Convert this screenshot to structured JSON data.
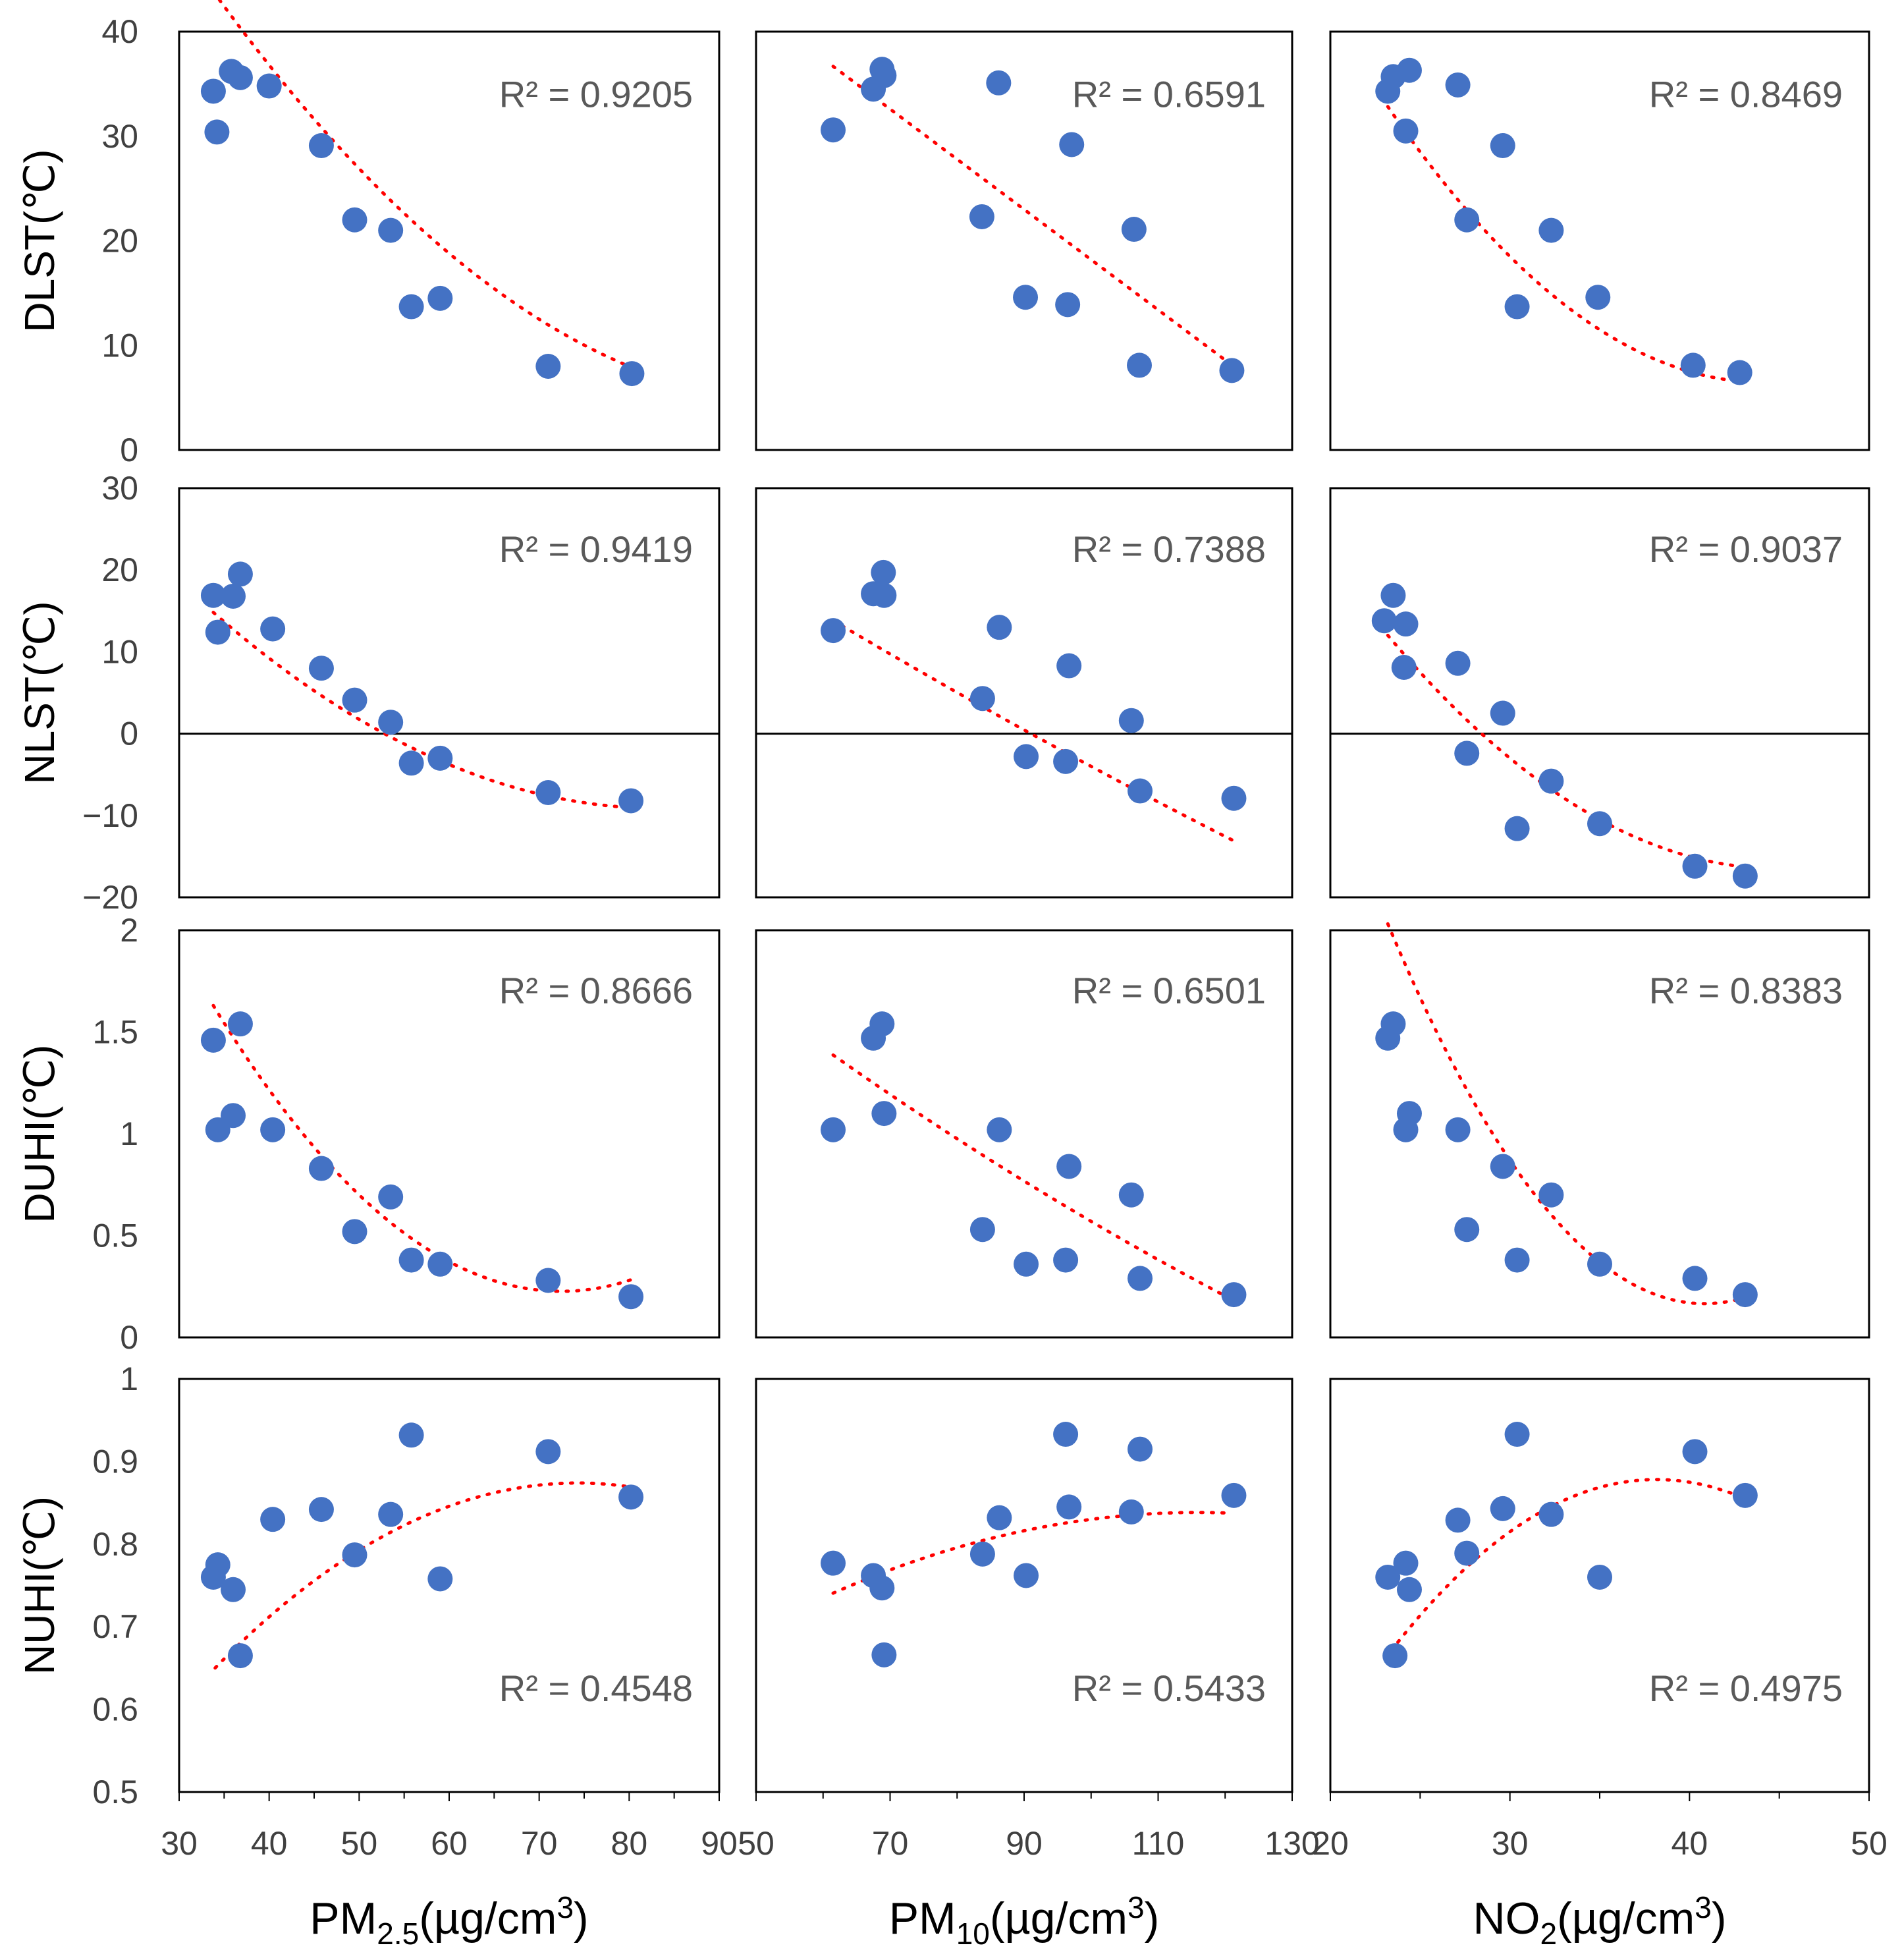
{
  "chart_data": {
    "type": "scatter",
    "layout": "4x3 grid of scatter plots with polynomial trendlines",
    "colors": {
      "points": "#4472C4",
      "trendline": "#FF0000",
      "frame": "#000000",
      "text": "#595959"
    },
    "x_axes": [
      {
        "label": "PM2.5 (µg/cm3)",
        "label_main": "PM",
        "label_sub": "2.5",
        "label_tail": "(µg/cm",
        "label_sup": "3",
        "label_end": ")",
        "range": [
          30,
          90
        ],
        "ticks": [
          "30",
          "40",
          "50",
          "60",
          "70",
          "80",
          "90"
        ]
      },
      {
        "label": "PM10(µg/cm3)",
        "label_main": "PM",
        "label_sub": "10",
        "label_tail": "(µg/cm",
        "label_sup": "3",
        "label_end": ")",
        "range": [
          50,
          130
        ],
        "ticks": [
          "50",
          "70",
          "90",
          "110",
          "130"
        ]
      },
      {
        "label": "NO2(µg/cm3)",
        "label_main": "NO",
        "label_sub": "2",
        "label_tail": "(µg/cm",
        "label_sup": "3",
        "label_end": ")",
        "range": [
          20,
          50
        ],
        "ticks": [
          "20",
          "30",
          "40",
          "50"
        ]
      }
    ],
    "rows": [
      {
        "ylabel": "DLST(℃)",
        "range": [
          0,
          40
        ],
        "ticks": [
          "0",
          "10",
          "20",
          "30",
          "40"
        ],
        "panels": [
          {
            "r2_label": "R² = 0.9205",
            "r2": 0.9205,
            "r2_pos": "top-right",
            "x": [
              33.8,
              34.2,
              35.8,
              36.8,
              40,
              45.8,
              49.5,
              53.5,
              55.8,
              59,
              71,
              80.3
            ],
            "y": [
              34.3,
              30.4,
              36.2,
              35.6,
              34.8,
              29.1,
              22,
              21,
              13.7,
              14.5,
              8,
              7.3
            ],
            "fit_x": [
              33.8,
              80.3
            ],
            "fit": [
              0.009,
              -1.8,
              94.4
            ]
          },
          {
            "r2_label": "R² = 0.6591",
            "r2": 0.6591,
            "r2_pos": "top-right",
            "x": [
              61.5,
              67.5,
              68.8,
              69.1,
              86.2,
              83.7,
              90.2,
              96.5,
              97.1,
              106.4,
              107.2,
              121
            ],
            "y": [
              30.6,
              34.5,
              36.4,
              35.8,
              35.1,
              22.3,
              14.6,
              13.9,
              29.2,
              21.1,
              8.1,
              7.6
            ],
            "fit_x": [
              61.5,
              121
            ],
            "fit": [
              0,
              -0.48,
              66.2
            ]
          },
          {
            "r2_label": "R² = 0.8469",
            "r2": 0.8469,
            "r2_pos": "top-right",
            "x": [
              23.2,
              23.5,
              24.2,
              24.4,
              27.1,
              27.6,
              29.6,
              30.4,
              32.3,
              34.9,
              40.2,
              42.8
            ],
            "y": [
              34.3,
              35.7,
              30.5,
              36.3,
              34.9,
              22,
              29.1,
              13.7,
              21,
              14.6,
              8.1,
              7.4
            ],
            "fit_x": [
              23.2,
              42.8
            ],
            "fit": [
              0.06,
              -5.3,
              123.5
            ]
          }
        ]
      },
      {
        "ylabel": "NLST(℃)",
        "range": [
          -20,
          30
        ],
        "ticks": [
          "−20",
          "−10",
          "0",
          "10",
          "20",
          "30"
        ],
        "zero_line": 0,
        "panels": [
          {
            "r2_label": "R² = 0.9419",
            "r2": 0.9419,
            "r2_pos": "top-right",
            "x": [
              33.8,
              34.3,
              36,
              36.8,
              40.4,
              45.8,
              49.5,
              53.5,
              55.8,
              59,
              71,
              80.2
            ],
            "y": [
              16.9,
              12.4,
              16.8,
              19.5,
              12.8,
              8,
              4.1,
              1.4,
              -3.6,
              -3,
              -7.2,
              -8.2
            ],
            "fit_x": [
              33.8,
              80.3
            ],
            "fit": [
              0.0097,
              -1.62,
              58.5
            ]
          },
          {
            "r2_label": "R² = 0.7388",
            "r2": 0.7388,
            "r2_pos": "top-right",
            "x": [
              61.5,
              67.5,
              69,
              69.1,
              86.3,
              83.8,
              90.3,
              96.2,
              96.7,
              106,
              107.3,
              121.3
            ],
            "y": [
              12.6,
              17.1,
              19.7,
              16.9,
              13,
              4.3,
              -2.8,
              -3.4,
              8.3,
              1.6,
              -7,
              -7.9
            ],
            "fit_x": [
              61.5,
              121
            ],
            "fit": [
              0.0006,
              -0.56,
              46
            ]
          },
          {
            "r2_label": "R² = 0.9037",
            "r2": 0.9037,
            "r2_pos": "top-right",
            "x": [
              23,
              23.5,
              24.2,
              24.1,
              27.1,
              27.6,
              29.6,
              30.4,
              32.3,
              35,
              40.3,
              43.1
            ],
            "y": [
              13.8,
              16.9,
              13.4,
              8.1,
              8.6,
              -2.4,
              2.5,
              -11.6,
              -5.8,
              -11,
              -16.2,
              -17.4
            ],
            "fit_x": [
              23.2,
              42.8
            ],
            "fit": [
              0.06,
              -5.4,
              105
            ]
          }
        ]
      },
      {
        "ylabel": "DUHI(℃)",
        "range": [
          0,
          2
        ],
        "ticks": [
          "0",
          "0.5",
          "1",
          "1.5",
          "2"
        ],
        "panels": [
          {
            "r2_label": "R² = 0.8666",
            "r2": 0.8666,
            "r2_pos": "top-right",
            "x": [
              33.8,
              34.3,
              36,
              36.8,
              40.4,
              45.8,
              49.5,
              53.5,
              55.8,
              59,
              71,
              80.2
            ],
            "y": [
              1.46,
              1.02,
              1.09,
              1.54,
              1.02,
              0.83,
              0.52,
              0.69,
              0.38,
              0.36,
              0.28,
              0.2
            ],
            "fit_x": [
              33.8,
              80.3
            ],
            "fit": [
              0.00094,
              -0.1362,
              5.16
            ]
          },
          {
            "r2_label": "R² = 0.6501",
            "r2": 0.6501,
            "r2_pos": "top-right",
            "x": [
              61.5,
              67.5,
              68.8,
              69.1,
              86.3,
              83.8,
              90.3,
              96.2,
              96.7,
              106,
              107.3,
              121.3
            ],
            "y": [
              1.02,
              1.47,
              1.54,
              1.1,
              1.02,
              0.53,
              0.36,
              0.38,
              0.84,
              0.7,
              0.29,
              0.21
            ],
            "fit_x": [
              61.5,
              121
            ],
            "fit": [
              5e-05,
              -0.0293,
              3.0
            ]
          },
          {
            "r2_label": "R² = 0.8383",
            "r2": 0.8383,
            "r2_pos": "top-right",
            "x": [
              23.2,
              23.5,
              24.2,
              24.4,
              27.1,
              27.6,
              29.6,
              30.4,
              32.3,
              35,
              40.3,
              43.1
            ],
            "y": [
              1.47,
              1.54,
              1.02,
              1.1,
              1.02,
              0.53,
              0.84,
              0.38,
              0.7,
              0.36,
              0.29,
              0.21
            ],
            "fit_x": [
              23.2,
              42.8
            ],
            "fit": [
              0.006,
              -0.49,
              10.17
            ]
          }
        ]
      },
      {
        "ylabel": "NUHI(℃)",
        "range": [
          0.5,
          1
        ],
        "ticks": [
          "0.5",
          "0.6",
          "0.7",
          "0.8",
          "0.9",
          "1"
        ],
        "panels": [
          {
            "r2_label": "R² = 0.4548",
            "r2": 0.4548,
            "r2_pos": "bottom-right",
            "x": [
              33.8,
              34.3,
              36,
              36.8,
              40.4,
              45.8,
              49.5,
              53.5,
              55.8,
              59,
              71,
              80.2
            ],
            "y": [
              0.76,
              0.775,
              0.745,
              0.665,
              0.83,
              0.842,
              0.787,
              0.836,
              0.932,
              0.758,
              0.912,
              0.857
            ],
            "fit_x": [
              34,
              80.3
            ],
            "fit": [
              -0.000138,
              0.0205,
              0.1127
            ]
          },
          {
            "r2_label": "R² = 0.5433",
            "r2": 0.5433,
            "r2_pos": "bottom-right",
            "x": [
              61.5,
              67.5,
              68.8,
              69.1,
              86.3,
              83.8,
              90.3,
              96.2,
              96.7,
              106,
              107.3,
              121.3
            ],
            "y": [
              0.777,
              0.762,
              0.747,
              0.666,
              0.832,
              0.788,
              0.762,
              0.933,
              0.845,
              0.839,
              0.915,
              0.859
            ],
            "fit_x": [
              61.5,
              120
            ],
            "fit": [
              -3.3e-05,
              0.00765,
              0.395
            ]
          },
          {
            "r2_label": "R² = 0.4975",
            "r2": 0.4975,
            "r2_pos": "bottom-right",
            "x": [
              23.2,
              23.6,
              24.2,
              24.4,
              27.1,
              27.6,
              29.6,
              30.4,
              32.3,
              35,
              40.3,
              43.1
            ],
            "y": [
              0.76,
              0.665,
              0.777,
              0.745,
              0.829,
              0.789,
              0.843,
              0.933,
              0.836,
              0.76,
              0.912,
              0.859
            ],
            "fit_x": [
              23.4,
              42.8
            ],
            "fit": [
              -0.00095,
              0.0725,
              -0.505
            ]
          }
        ]
      }
    ]
  }
}
